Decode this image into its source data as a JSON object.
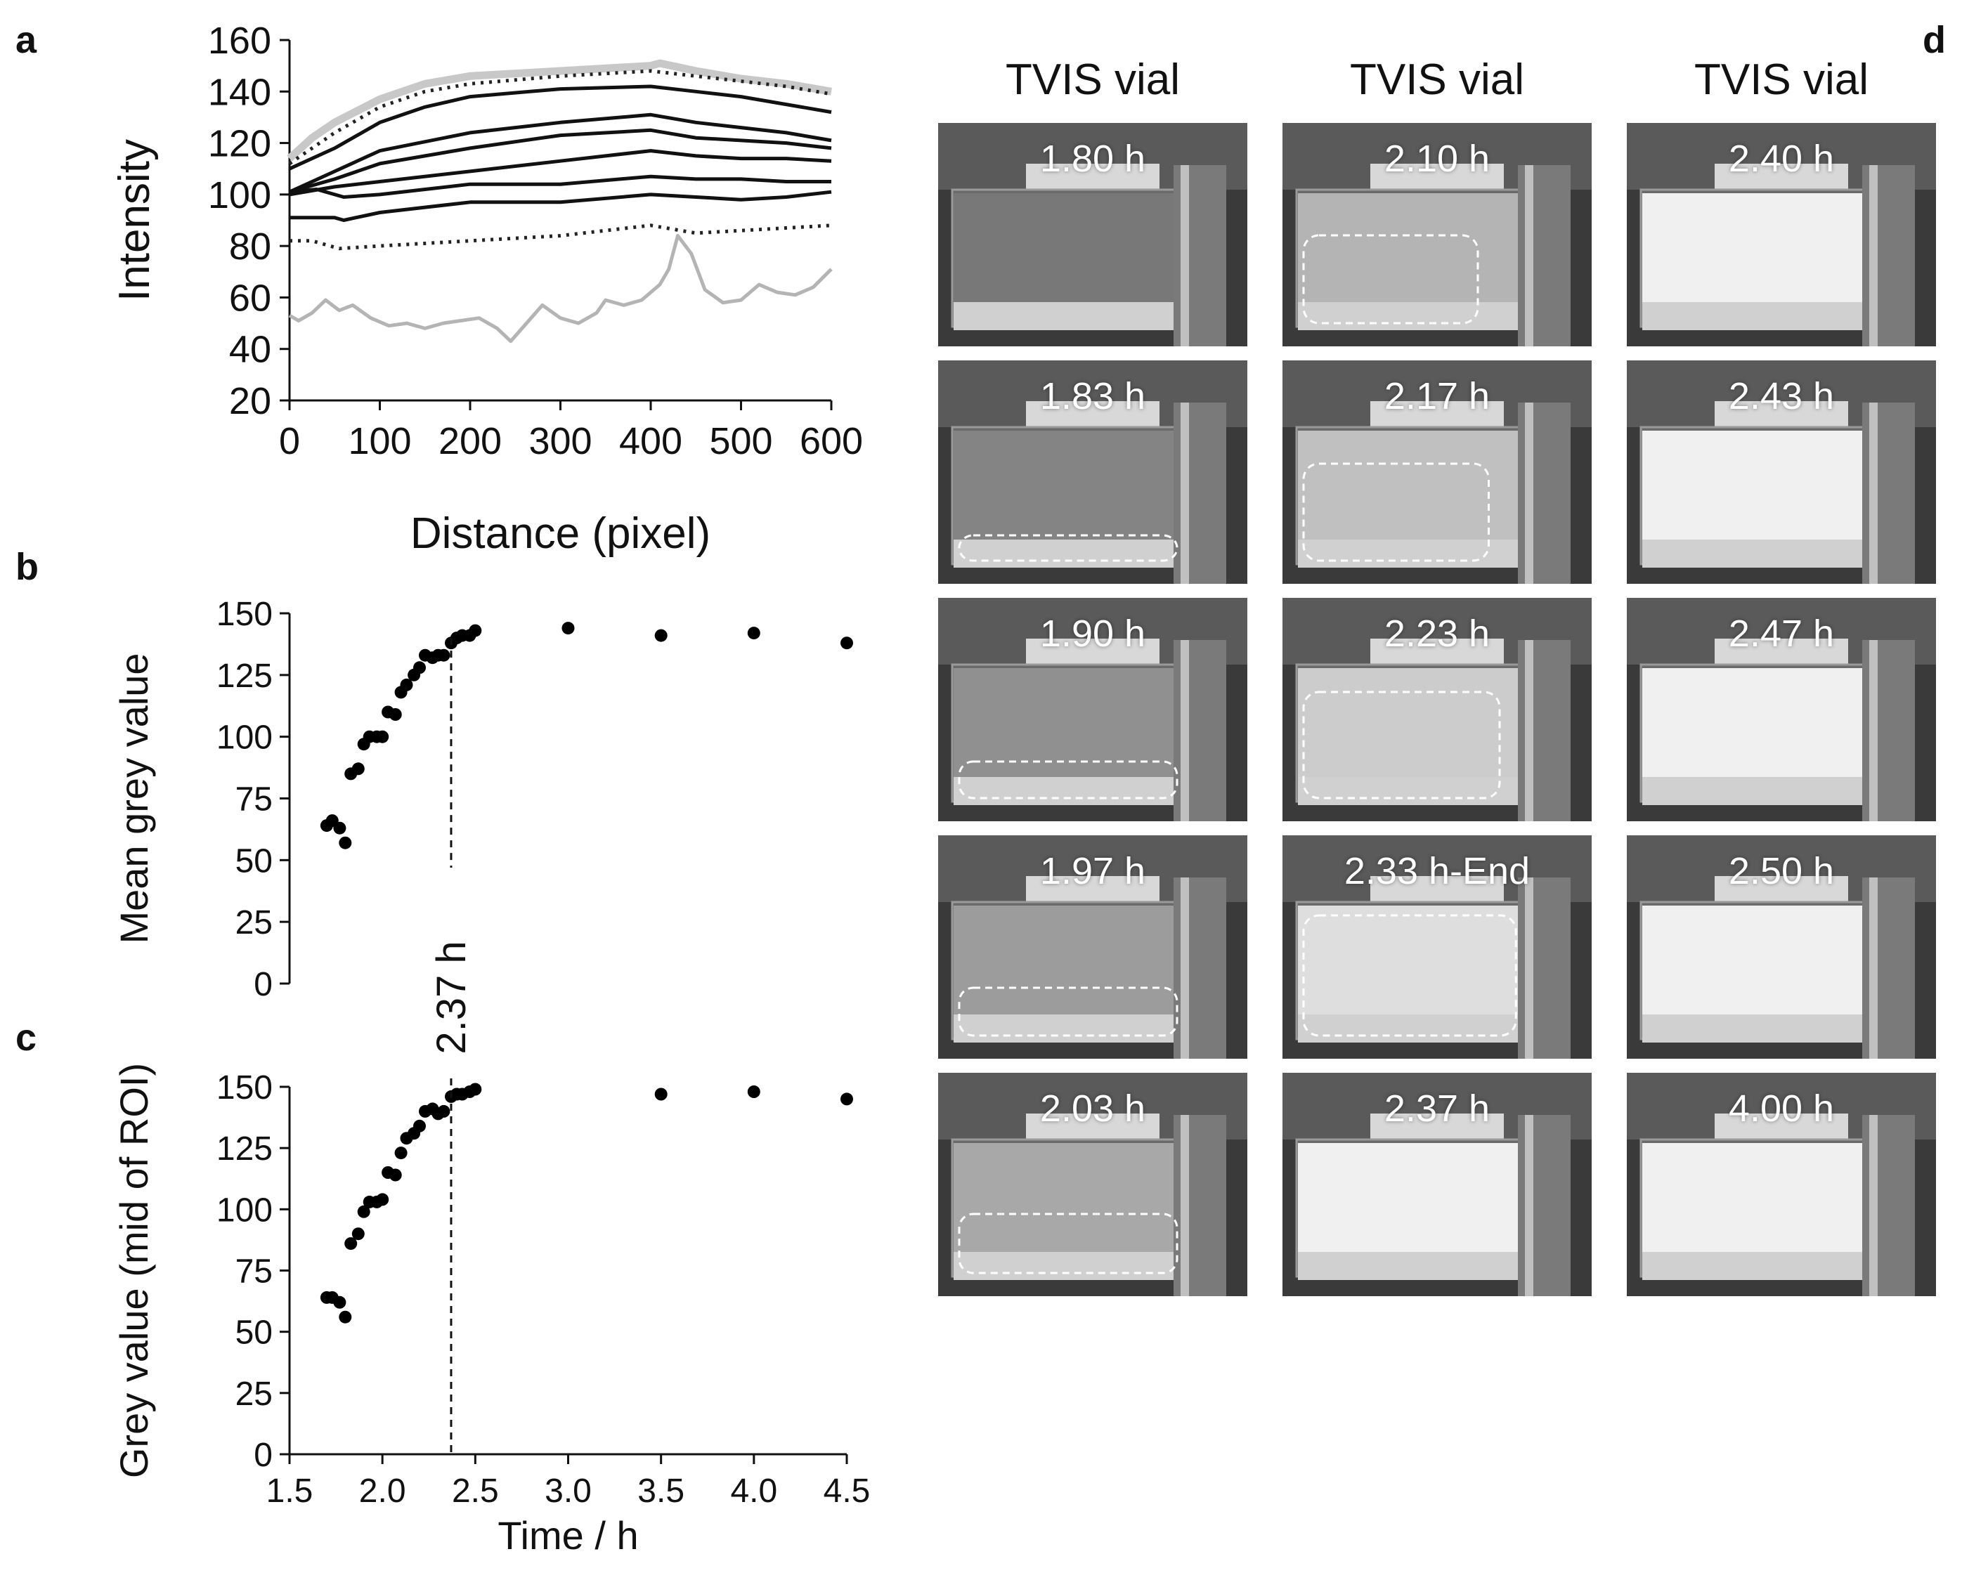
{
  "panels": {
    "a": "a",
    "b": "b",
    "c": "c",
    "d": "d"
  },
  "chart_data": [
    {
      "panel": "a",
      "type": "line",
      "xlabel": "Distance (pixel)",
      "ylabel": "Intensity",
      "xlim": [
        0,
        600
      ],
      "ylim": [
        20,
        160
      ],
      "xticks": [
        0,
        100,
        200,
        300,
        400,
        500,
        600
      ],
      "yticks": [
        20,
        40,
        60,
        80,
        100,
        120,
        140,
        160
      ],
      "series": [
        {
          "style": "grey-thick",
          "color": "#c8c8c8",
          "x": [
            0,
            25,
            50,
            100,
            150,
            200,
            300,
            400,
            410,
            450,
            500,
            550,
            600
          ],
          "y": [
            114,
            122,
            128,
            137,
            143,
            146,
            148,
            150,
            151,
            148,
            145,
            143,
            140
          ]
        },
        {
          "style": "dotted",
          "color": "#222222",
          "x": [
            0,
            50,
            100,
            150,
            200,
            300,
            400,
            450,
            500,
            550,
            600
          ],
          "y": [
            112,
            124,
            134,
            140,
            143,
            146,
            148,
            146,
            144,
            142,
            139
          ]
        },
        {
          "style": "solid",
          "color": "#111111",
          "x": [
            0,
            50,
            100,
            150,
            200,
            300,
            400,
            450,
            500,
            550,
            600
          ],
          "y": [
            110,
            118,
            128,
            134,
            138,
            141,
            142,
            140,
            138,
            135,
            132
          ]
        },
        {
          "style": "solid",
          "color": "#111111",
          "x": [
            0,
            50,
            100,
            200,
            300,
            400,
            450,
            500,
            550,
            600
          ],
          "y": [
            101,
            109,
            117,
            124,
            128,
            131,
            128,
            126,
            124,
            121
          ]
        },
        {
          "style": "solid",
          "color": "#111111",
          "x": [
            0,
            50,
            100,
            200,
            300,
            400,
            450,
            500,
            550,
            600
          ],
          "y": [
            101,
            106,
            112,
            118,
            123,
            125,
            122,
            121,
            120,
            118
          ]
        },
        {
          "style": "solid",
          "color": "#111111",
          "x": [
            0,
            50,
            100,
            200,
            300,
            400,
            450,
            500,
            550,
            600
          ],
          "y": [
            100,
            103,
            105,
            109,
            113,
            117,
            115,
            114,
            114,
            113
          ]
        },
        {
          "style": "solid",
          "color": "#111111",
          "x": [
            0,
            30,
            60,
            100,
            200,
            300,
            400,
            450,
            500,
            550,
            600
          ],
          "y": [
            101,
            102,
            99,
            100,
            104,
            104,
            107,
            106,
            106,
            105,
            105
          ]
        },
        {
          "style": "solid",
          "color": "#111111",
          "x": [
            0,
            50,
            60,
            100,
            200,
            300,
            400,
            450,
            500,
            550,
            600
          ],
          "y": [
            91,
            91,
            90,
            93,
            97,
            97,
            100,
            99,
            98,
            99,
            101
          ]
        },
        {
          "style": "dotted",
          "color": "#222222",
          "x": [
            0,
            25,
            55,
            100,
            200,
            300,
            400,
            450,
            500,
            600
          ],
          "y": [
            82,
            82,
            79,
            80,
            82,
            84,
            88,
            85,
            86,
            88
          ]
        },
        {
          "style": "grey-thin",
          "color": "#b4b4b4",
          "x": [
            0,
            10,
            25,
            40,
            55,
            70,
            90,
            110,
            130,
            150,
            170,
            190,
            210,
            230,
            245,
            260,
            280,
            300,
            320,
            340,
            350,
            370,
            390,
            410,
            420,
            430,
            445,
            460,
            480,
            500,
            520,
            540,
            560,
            580,
            600
          ],
          "y": [
            53,
            51,
            54,
            59,
            55,
            57,
            52,
            49,
            50,
            48,
            50,
            51,
            52,
            48,
            43,
            49,
            57,
            52,
            50,
            54,
            59,
            57,
            59,
            65,
            71,
            84,
            77,
            63,
            58,
            59,
            65,
            62,
            61,
            64,
            71
          ]
        }
      ]
    },
    {
      "panel": "b",
      "type": "scatter",
      "xlabel": "",
      "ylabel": "Mean grey value",
      "xlim": [
        1.5,
        4.5
      ],
      "ylim": [
        0,
        150
      ],
      "yticks": [
        0,
        25,
        50,
        75,
        100,
        125,
        150
      ],
      "vline": {
        "x": 2.37,
        "label": "2.37 h"
      },
      "x": [
        1.7,
        1.73,
        1.77,
        1.8,
        1.83,
        1.87,
        1.9,
        1.93,
        1.97,
        2.0,
        2.03,
        2.07,
        2.1,
        2.13,
        2.17,
        2.2,
        2.23,
        2.27,
        2.3,
        2.33,
        2.37,
        2.4,
        2.43,
        2.47,
        2.5,
        3.0,
        3.5,
        4.0,
        4.5
      ],
      "y": [
        64,
        66,
        63,
        57,
        85,
        87,
        97,
        100,
        100,
        100,
        110,
        109,
        118,
        121,
        125,
        128,
        133,
        132,
        133,
        133,
        138,
        140,
        141,
        141,
        143,
        144,
        141,
        142,
        138
      ]
    },
    {
      "panel": "c",
      "type": "scatter",
      "xlabel": "Time / h",
      "ylabel": "Grey value  (mid of ROI)",
      "xlim": [
        1.5,
        4.5
      ],
      "ylim": [
        0,
        150
      ],
      "xticks": [
        "1.5",
        "2.0",
        "2.5",
        "3.0",
        "3.5",
        "4.0",
        "4.5"
      ],
      "yticks": [
        0,
        25,
        50,
        75,
        100,
        125,
        150
      ],
      "vline": {
        "x": 2.37
      },
      "x": [
        1.7,
        1.73,
        1.77,
        1.8,
        1.83,
        1.87,
        1.9,
        1.93,
        1.97,
        2.0,
        2.03,
        2.07,
        2.1,
        2.13,
        2.17,
        2.2,
        2.23,
        2.27,
        2.3,
        2.33,
        2.37,
        2.4,
        2.43,
        2.47,
        2.5,
        3.5,
        4.0,
        4.5
      ],
      "y": [
        64,
        64,
        62,
        56,
        86,
        90,
        99,
        103,
        103,
        104,
        115,
        114,
        123,
        129,
        131,
        134,
        140,
        141,
        139,
        140,
        146,
        147,
        147,
        148,
        149,
        147,
        148,
        145
      ]
    }
  ],
  "vial_grid": {
    "column_heads": [
      "TVIS vial",
      "TVIS vial",
      "TVIS vial"
    ],
    "columns": [
      [
        {
          "label": "1.80 h",
          "fill": 0.0
        },
        {
          "label": "1.83 h",
          "fill": 0.1
        },
        {
          "label": "1.90 h",
          "fill": 0.2
        },
        {
          "label": "1.97 h",
          "fill": 0.3
        },
        {
          "label": "2.03 h",
          "fill": 0.4
        }
      ],
      [
        {
          "label": "2.10 h",
          "fill": 0.5
        },
        {
          "label": "2.17 h",
          "fill": 0.6
        },
        {
          "label": "2.23 h",
          "fill": 0.7
        },
        {
          "label": "2.33 h-End",
          "fill": 0.85
        },
        {
          "label": "2.37 h",
          "fill": 1.0
        }
      ],
      [
        {
          "label": "2.40 h",
          "fill": 1.0
        },
        {
          "label": "2.43 h",
          "fill": 1.0
        },
        {
          "label": "2.47 h",
          "fill": 1.0
        },
        {
          "label": "2.50 h",
          "fill": 1.0
        },
        {
          "label": "4.00 h",
          "fill": 1.0
        }
      ]
    ]
  }
}
